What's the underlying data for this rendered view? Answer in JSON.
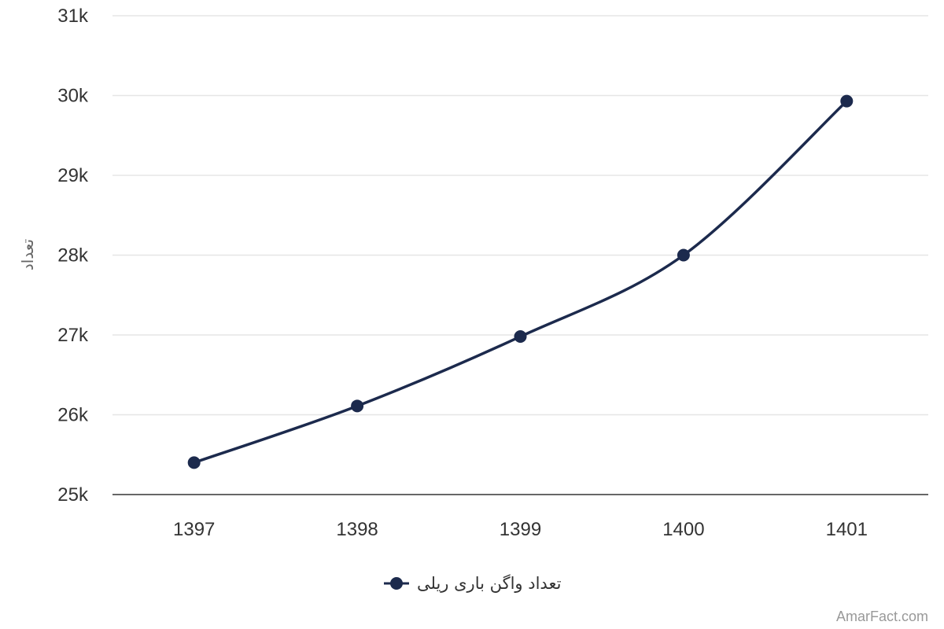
{
  "chart_data": {
    "type": "line",
    "categories": [
      "1397",
      "1398",
      "1399",
      "1400",
      "1401"
    ],
    "series": [
      {
        "name": "تعداد واگن باری ریلی",
        "values": [
          25400,
          26110,
          26980,
          28000,
          29930
        ],
        "color": "#1c2a4d"
      }
    ],
    "ylabel": "تعداد",
    "xlabel": "",
    "ylim": [
      25000,
      31000
    ],
    "yticks": [
      "25k",
      "26k",
      "27k",
      "28k",
      "29k",
      "30k",
      "31k"
    ],
    "grid": true,
    "legend_position": "bottom-center",
    "curve": "smooth"
  },
  "credit": "AmarFact.com",
  "colors": {
    "series": "#1c2a4d",
    "grid": "#e6e6e6",
    "axis": "#333333",
    "tick_text": "#333333",
    "axis_title": "#666666",
    "credit": "#999999"
  }
}
